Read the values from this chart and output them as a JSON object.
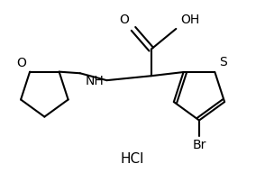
{
  "bg_color": "#ffffff",
  "line_color": "#000000",
  "line_width": 1.5,
  "font_size": 10,
  "labels": {
    "O": {
      "text": "O",
      "fontsize": 10
    },
    "OH": {
      "text": "OH",
      "fontsize": 10
    },
    "S": {
      "text": "S",
      "fontsize": 10
    },
    "Br": {
      "text": "Br",
      "fontsize": 10
    },
    "NH": {
      "text": "NH",
      "fontsize": 10
    },
    "O_ring": {
      "text": "O",
      "fontsize": 10
    },
    "HCl": {
      "text": "HCl",
      "fontsize": 11
    }
  }
}
